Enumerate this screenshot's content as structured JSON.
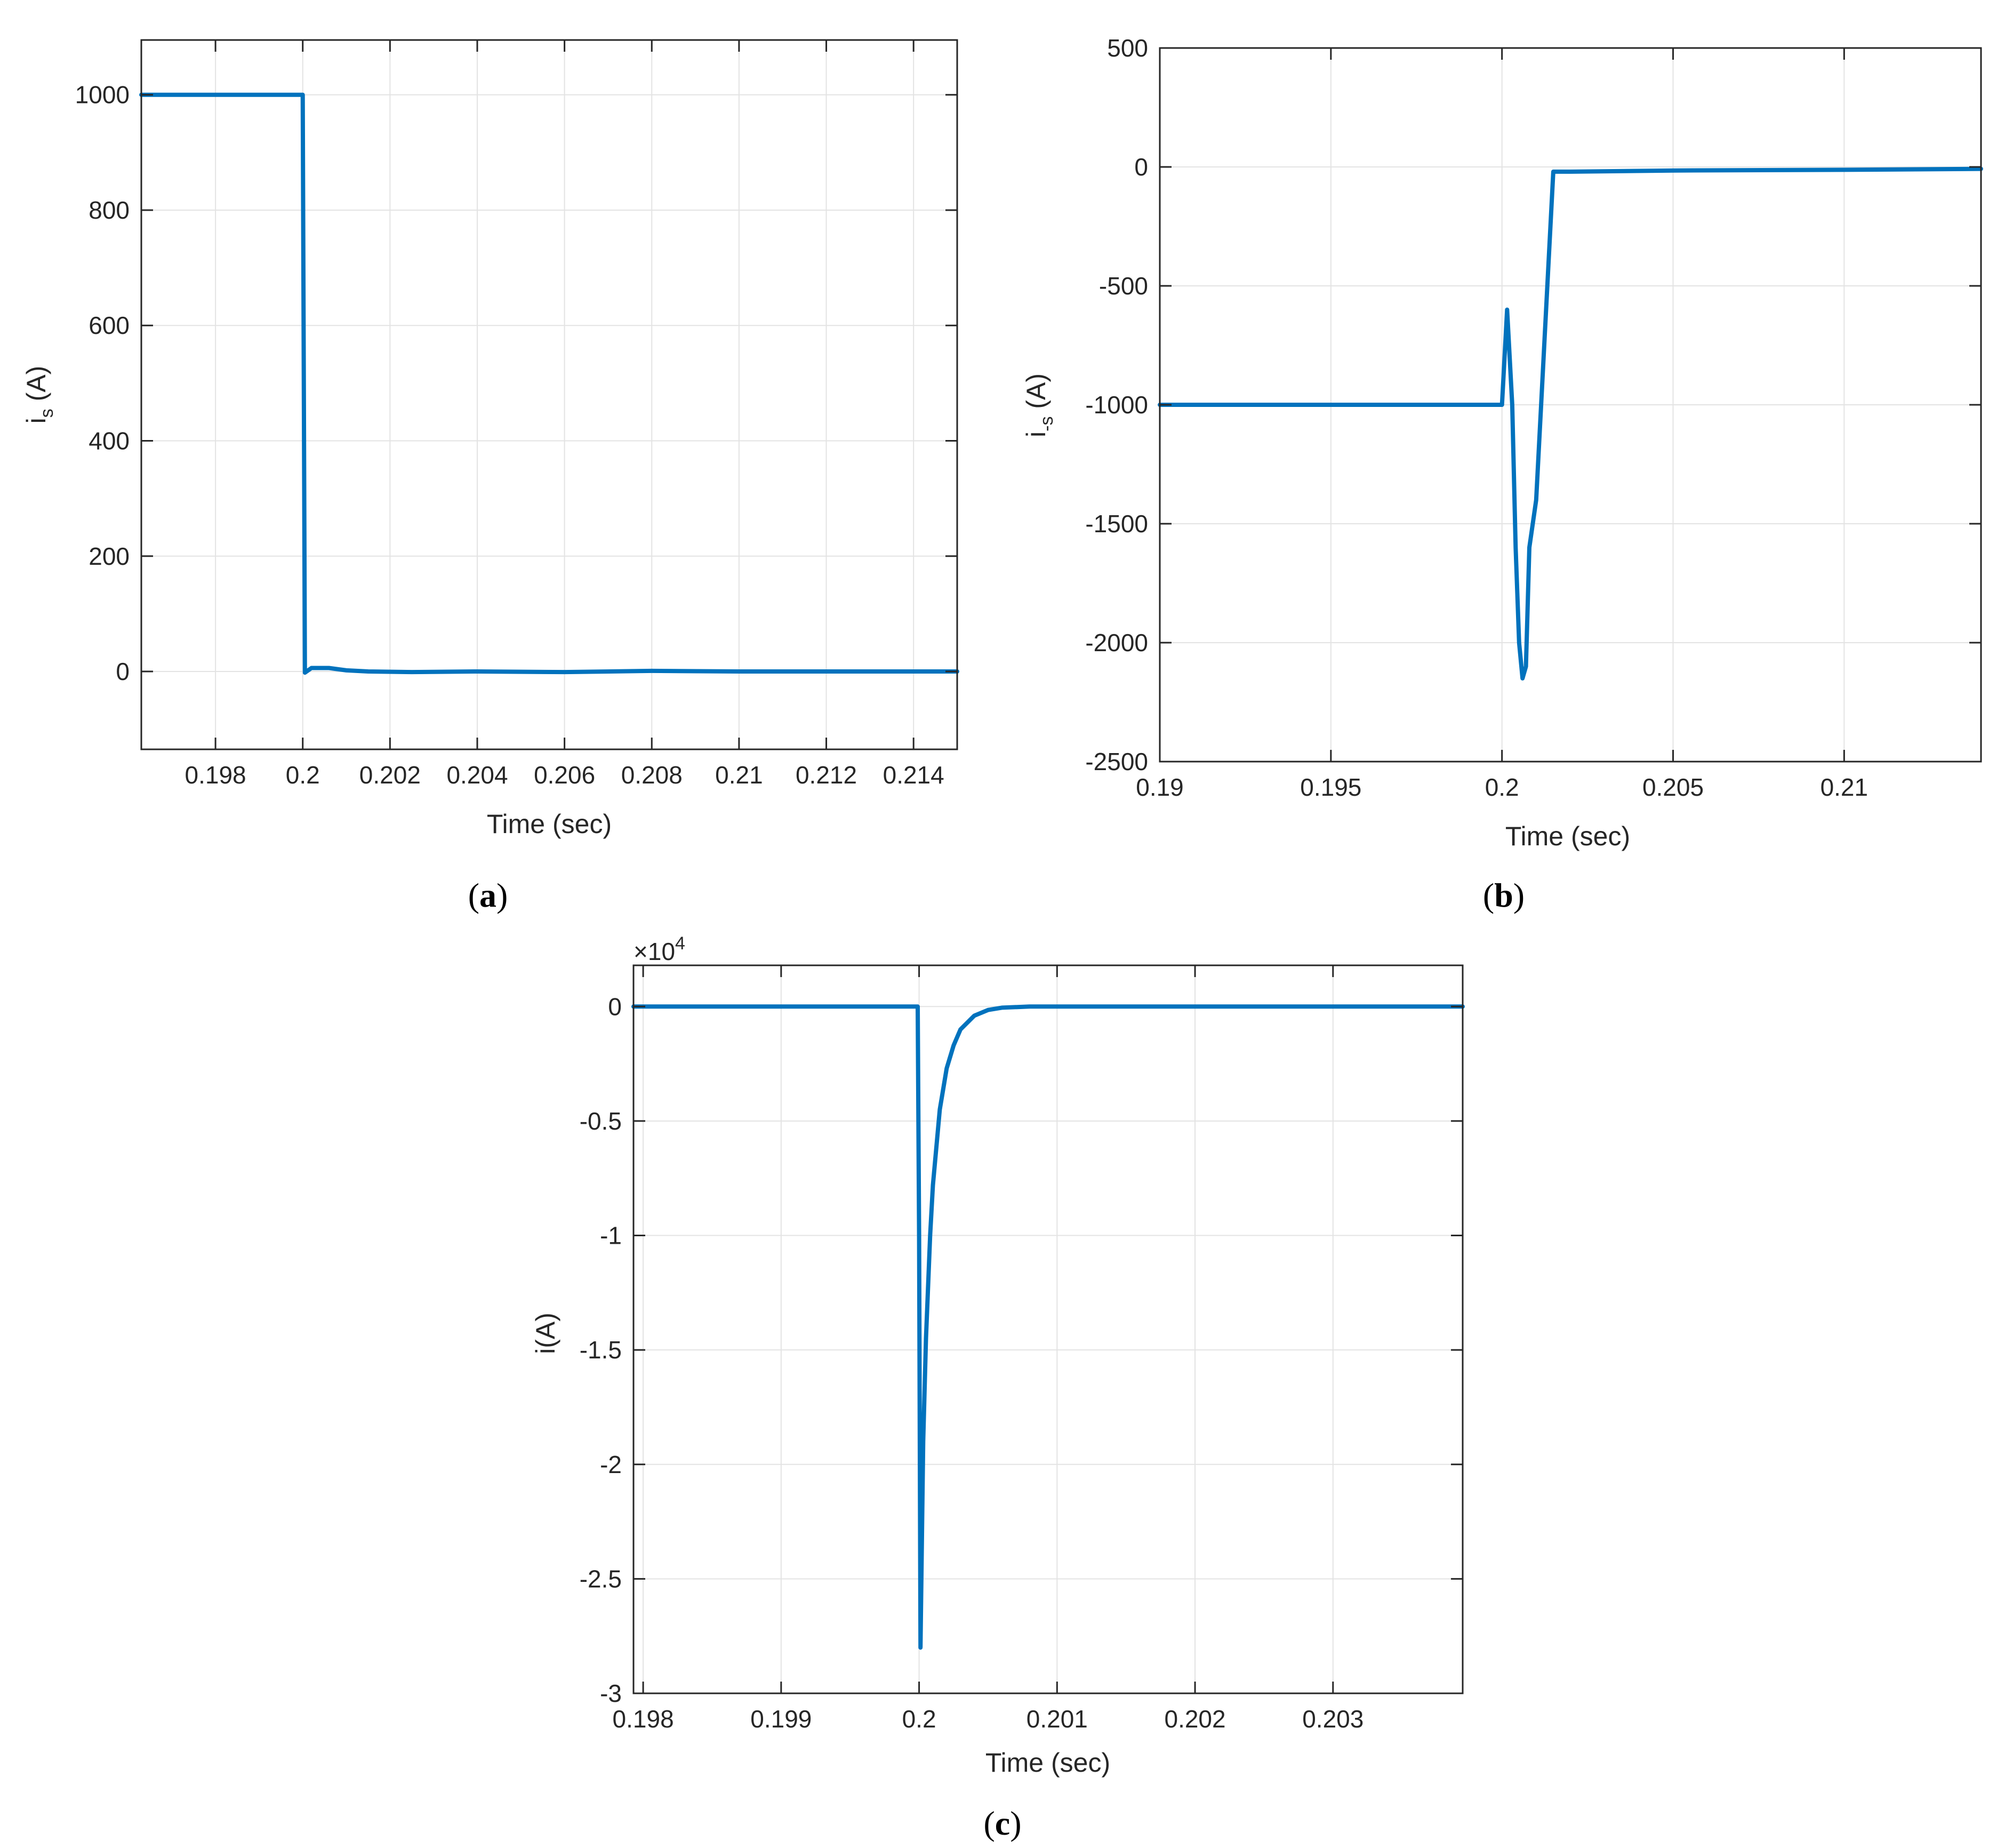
{
  "colors": {
    "line": "#0072BD",
    "grid": "#e3e3e3",
    "axis": "#262626",
    "text": "#262626"
  },
  "chart_data": [
    {
      "panel_id": "a",
      "caption_letter": "a",
      "type": "line",
      "xlabel": "Time (sec)",
      "ylabel_base": "i",
      "ylabel_sub": "s",
      "ylabel_unit": " (A)",
      "xlim": [
        0.1963,
        0.215
      ],
      "ylim": [
        -135,
        1095
      ],
      "x_ticks": [
        0.198,
        0.2,
        0.202,
        0.204,
        0.206,
        0.208,
        0.21,
        0.212,
        0.214
      ],
      "x_tick_labels": [
        "0.198",
        "0.2",
        "0.202",
        "0.204",
        "0.206",
        "0.208",
        "0.21",
        "0.212",
        "0.214"
      ],
      "y_ticks": [
        0,
        200,
        400,
        600,
        800,
        1000
      ],
      "y_tick_labels": [
        "0",
        "200",
        "400",
        "600",
        "800",
        "1000"
      ],
      "grid": true,
      "series": [
        {
          "x": [
            0.1963,
            0.19998,
            0.2,
            0.20005,
            0.2002,
            0.2006,
            0.201,
            0.2015,
            0.2025,
            0.204,
            0.206,
            0.208,
            0.21,
            0.212,
            0.215
          ],
          "y": [
            1000,
            1000,
            1000,
            -2,
            6,
            6,
            2,
            0,
            -1,
            0,
            -1,
            1,
            0,
            0,
            0
          ]
        }
      ]
    },
    {
      "panel_id": "b",
      "caption_letter": "b",
      "type": "line",
      "xlabel": "Time (sec)",
      "ylabel_base": "i",
      "ylabel_sub": "-s",
      "ylabel_unit": " (A)",
      "xlim": [
        0.19,
        0.214
      ],
      "ylim": [
        -2500,
        500
      ],
      "x_ticks": [
        0.19,
        0.195,
        0.2,
        0.205,
        0.21
      ],
      "x_tick_labels": [
        "0.19",
        "0.195",
        "0.2",
        "0.205",
        "0.21"
      ],
      "y_ticks": [
        -2500,
        -2000,
        -1500,
        -1000,
        -500,
        0,
        500
      ],
      "y_tick_labels": [
        "-2500",
        "-2000",
        "-1500",
        "-1000",
        "-500",
        "0",
        "500"
      ],
      "grid": true,
      "series": [
        {
          "x": [
            0.19,
            0.19995,
            0.2,
            0.20015,
            0.2003,
            0.2004,
            0.2005,
            0.2006,
            0.2007,
            0.2008,
            0.201,
            0.2015,
            0.202,
            0.205,
            0.21,
            0.214
          ],
          "y": [
            -1000,
            -1000,
            -1000,
            -600,
            -1000,
            -1600,
            -2000,
            -2150,
            -2100,
            -1600,
            -1400,
            -20,
            -20,
            -15,
            -12,
            -8
          ]
        }
      ]
    },
    {
      "panel_id": "c",
      "caption_letter": "c",
      "type": "line",
      "xlabel": "Time (sec)",
      "ylabel": "i(A)",
      "exponent_prefix": "×10",
      "exponent_power": "4",
      "xlim": [
        0.19793,
        0.20394
      ],
      "ylim": [
        -3,
        0.18
      ],
      "x_ticks": [
        0.198,
        0.199,
        0.2,
        0.201,
        0.202,
        0.203
      ],
      "x_tick_labels": [
        "0.198",
        "0.199",
        "0.2",
        "0.201",
        "0.202",
        "0.203"
      ],
      "y_ticks": [
        -3,
        -2.5,
        -2,
        -1.5,
        -1,
        -0.5,
        0
      ],
      "y_tick_labels": [
        "-3",
        "-2.5",
        "-2",
        "-1.5",
        "-1",
        "-0.5",
        "0"
      ],
      "grid": true,
      "series": [
        {
          "x": [
            0.19793,
            0.19999,
            0.2,
            0.20001,
            0.20003,
            0.20005,
            0.20008,
            0.2001,
            0.20015,
            0.2002,
            0.20025,
            0.2003,
            0.2004,
            0.2005,
            0.2006,
            0.2008,
            0.201,
            0.203,
            0.20394
          ],
          "y": [
            0,
            0,
            -1.0,
            -2.8,
            -1.9,
            -1.45,
            -1.0,
            -0.78,
            -0.45,
            -0.27,
            -0.17,
            -0.1,
            -0.04,
            -0.015,
            -0.005,
            0,
            0,
            0,
            0
          ]
        }
      ]
    }
  ]
}
